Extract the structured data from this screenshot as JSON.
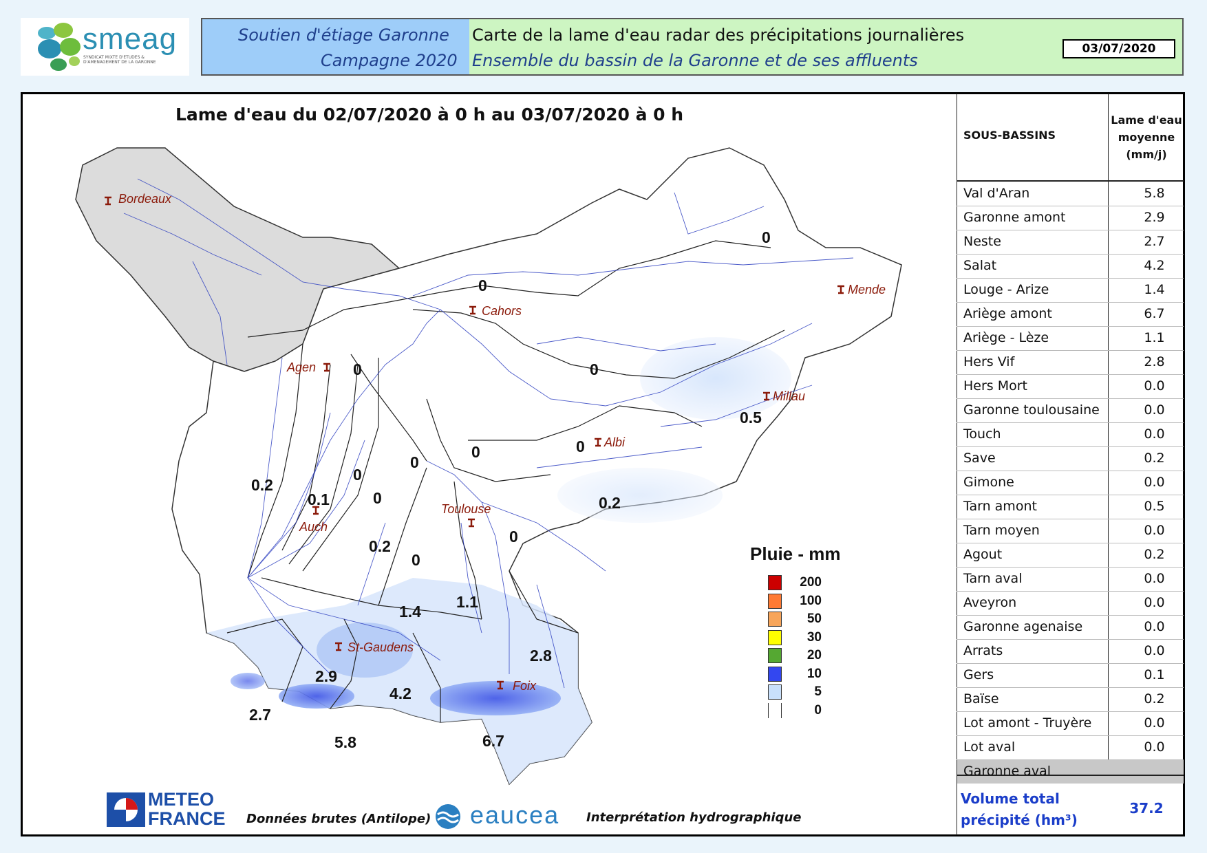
{
  "header": {
    "logo_text": "smeag",
    "logo_subtitle": "SYNDICAT MIXTE D'ETUDES & D'AMENAGEMENT DE LA GARONNE",
    "left_line1": "Soutien d'étiage Garonne",
    "left_line2": "Campagne 2020",
    "right_line1": "Carte de la lame d'eau radar des précipitations journalières",
    "right_line2": "Ensemble du bassin de la Garonne et de ses affluents",
    "date": "03/07/2020"
  },
  "map": {
    "title": "Lame d'eau du 02/07/2020 à 0 h au 03/07/2020 à 0 h",
    "cities": [
      "Bordeaux",
      "Cahors",
      "Mende",
      "Agen",
      "Millau",
      "Albi",
      "Toulouse",
      "Auch",
      "St-Gaudens",
      "Foix"
    ],
    "basin_values": [
      "0",
      "0",
      "0",
      "0",
      "0.5",
      "0",
      "0",
      "0.2",
      "0",
      "0",
      "0",
      "0.2",
      "0.1",
      "0.2",
      "0",
      "0",
      "1.4",
      "1.1",
      "2.8",
      "2.9",
      "4.2",
      "2.7",
      "5.8",
      "6.7"
    ]
  },
  "legend": {
    "title": "Pluie - mm",
    "items": [
      {
        "label": "200",
        "color": "#cc0000"
      },
      {
        "label": "100",
        "color": "#ff7a33"
      },
      {
        "label": "50",
        "color": "#f7a55a"
      },
      {
        "label": "30",
        "color": "#ffff00"
      },
      {
        "label": "20",
        "color": "#55a832"
      },
      {
        "label": "10",
        "color": "#3347f0"
      },
      {
        "label": "5",
        "color": "#c9e0fb"
      },
      {
        "label": "0",
        "color": "#ffffff"
      }
    ]
  },
  "table": {
    "header_col1": "SOUS-BASSINS",
    "header_col2_l1": "Lame d'eau",
    "header_col2_l2": "moyenne",
    "header_col2_l3": "(mm/j)",
    "rows": [
      {
        "name": "Val d'Aran",
        "value": "5.8"
      },
      {
        "name": "Garonne amont",
        "value": "2.9"
      },
      {
        "name": "Neste",
        "value": "2.7"
      },
      {
        "name": "Salat",
        "value": "4.2"
      },
      {
        "name": "Louge - Arize",
        "value": "1.4"
      },
      {
        "name": "Ariège amont",
        "value": "6.7"
      },
      {
        "name": "Ariège - Lèze",
        "value": "1.1"
      },
      {
        "name": "Hers Vif",
        "value": "2.8"
      },
      {
        "name": "Hers Mort",
        "value": "0.0"
      },
      {
        "name": "Garonne toulousaine",
        "value": "0.0"
      },
      {
        "name": "Touch",
        "value": "0.0"
      },
      {
        "name": "Save",
        "value": "0.2"
      },
      {
        "name": "Gimone",
        "value": "0.0"
      },
      {
        "name": "Tarn amont",
        "value": "0.5"
      },
      {
        "name": "Tarn moyen",
        "value": "0.0"
      },
      {
        "name": "Agout",
        "value": "0.2"
      },
      {
        "name": "Tarn aval",
        "value": "0.0"
      },
      {
        "name": "Aveyron",
        "value": "0.0"
      },
      {
        "name": "Garonne agenaise",
        "value": "0.0"
      },
      {
        "name": "Arrats",
        "value": "0.0"
      },
      {
        "name": "Gers",
        "value": "0.1"
      },
      {
        "name": "Baïse",
        "value": "0.2"
      },
      {
        "name": "Lot amont - Truyère",
        "value": "0.0"
      },
      {
        "name": "Lot aval",
        "value": "0.0"
      },
      {
        "name": "Garonne aval",
        "value": ""
      }
    ],
    "total_label_l1": "Volume total",
    "total_label_l2": "précipité (hm³)",
    "total_value": "37.2"
  },
  "footer": {
    "meteo_l1": "METEO",
    "meteo_l2": "FRANCE",
    "source_text": "Données brutes (Antilope)",
    "eaucea_text": "eaucea",
    "interp_text": "Interprétation hydrographique"
  }
}
